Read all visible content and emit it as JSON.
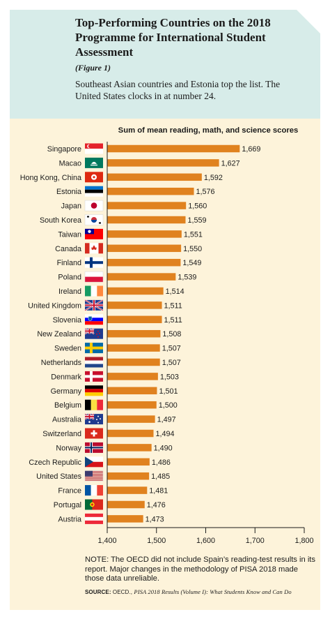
{
  "header": {
    "title": "Top-Performing Countries on the 2018 Programme for International Student Assessment",
    "figure_label": "(Figure 1)",
    "subtitle": "Southeast Asian countries and Estonia top the list. The United States clocks in at number 24."
  },
  "colors": {
    "header_bg": "#d7ece9",
    "panel_bg": "#fdf3da",
    "bar": "#e0821f"
  },
  "chart_data": {
    "type": "bar",
    "orientation": "horizontal",
    "title": "Sum of mean reading, math, and science scores",
    "xlim": [
      1400,
      1800
    ],
    "xticks": [
      "1,400",
      "1,500",
      "1,600",
      "1,700",
      "1,800"
    ],
    "grid": false,
    "categories": [
      "Singapore",
      "Macao",
      "Hong Kong, China",
      "Estonia",
      "Japan",
      "South Korea",
      "Taiwan",
      "Canada",
      "Finland",
      "Poland",
      "Ireland",
      "United Kingdom",
      "Slovenia",
      "New Zealand",
      "Sweden",
      "Netherlands",
      "Denmark",
      "Germany",
      "Belgium",
      "Australia",
      "Switzerland",
      "Norway",
      "Czech Republic",
      "United States",
      "France",
      "Portugal",
      "Austria"
    ],
    "values": [
      1669,
      1627,
      1592,
      1576,
      1560,
      1559,
      1551,
      1550,
      1549,
      1539,
      1514,
      1511,
      1511,
      1508,
      1507,
      1507,
      1503,
      1501,
      1500,
      1497,
      1494,
      1490,
      1486,
      1485,
      1481,
      1476,
      1473
    ],
    "value_labels": [
      "1,669",
      "1,627",
      "1,592",
      "1,576",
      "1,560",
      "1,559",
      "1,551",
      "1,550",
      "1,549",
      "1,539",
      "1,514",
      "1,511",
      "1,511",
      "1,508",
      "1,507",
      "1,507",
      "1,503",
      "1,501",
      "1,500",
      "1,497",
      "1,494",
      "1,490",
      "1,486",
      "1,485",
      "1,481",
      "1,476",
      "1,473"
    ],
    "flag_icons": [
      "flag-singapore-icon",
      "flag-macao-icon",
      "flag-hong-kong-icon",
      "flag-estonia-icon",
      "flag-japan-icon",
      "flag-south-korea-icon",
      "flag-taiwan-icon",
      "flag-canada-icon",
      "flag-finland-icon",
      "flag-poland-icon",
      "flag-ireland-icon",
      "flag-united-kingdom-icon",
      "flag-slovenia-icon",
      "flag-new-zealand-icon",
      "flag-sweden-icon",
      "flag-netherlands-icon",
      "flag-denmark-icon",
      "flag-germany-icon",
      "flag-belgium-icon",
      "flag-australia-icon",
      "flag-switzerland-icon",
      "flag-norway-icon",
      "flag-czech-republic-icon",
      "flag-united-states-icon",
      "flag-france-icon",
      "flag-portugal-icon",
      "flag-austria-icon"
    ]
  },
  "footer": {
    "note": "NOTE: The OECD did not include Spain’s reading-test results in its report. Major changes in the methodology of PISA 2018 made those data unreliable.",
    "source_label": "SOURCE:",
    "source_text": "OECD.,",
    "source_italic": "PISA 2018 Results (Volume I): What Students Know and Can Do"
  }
}
